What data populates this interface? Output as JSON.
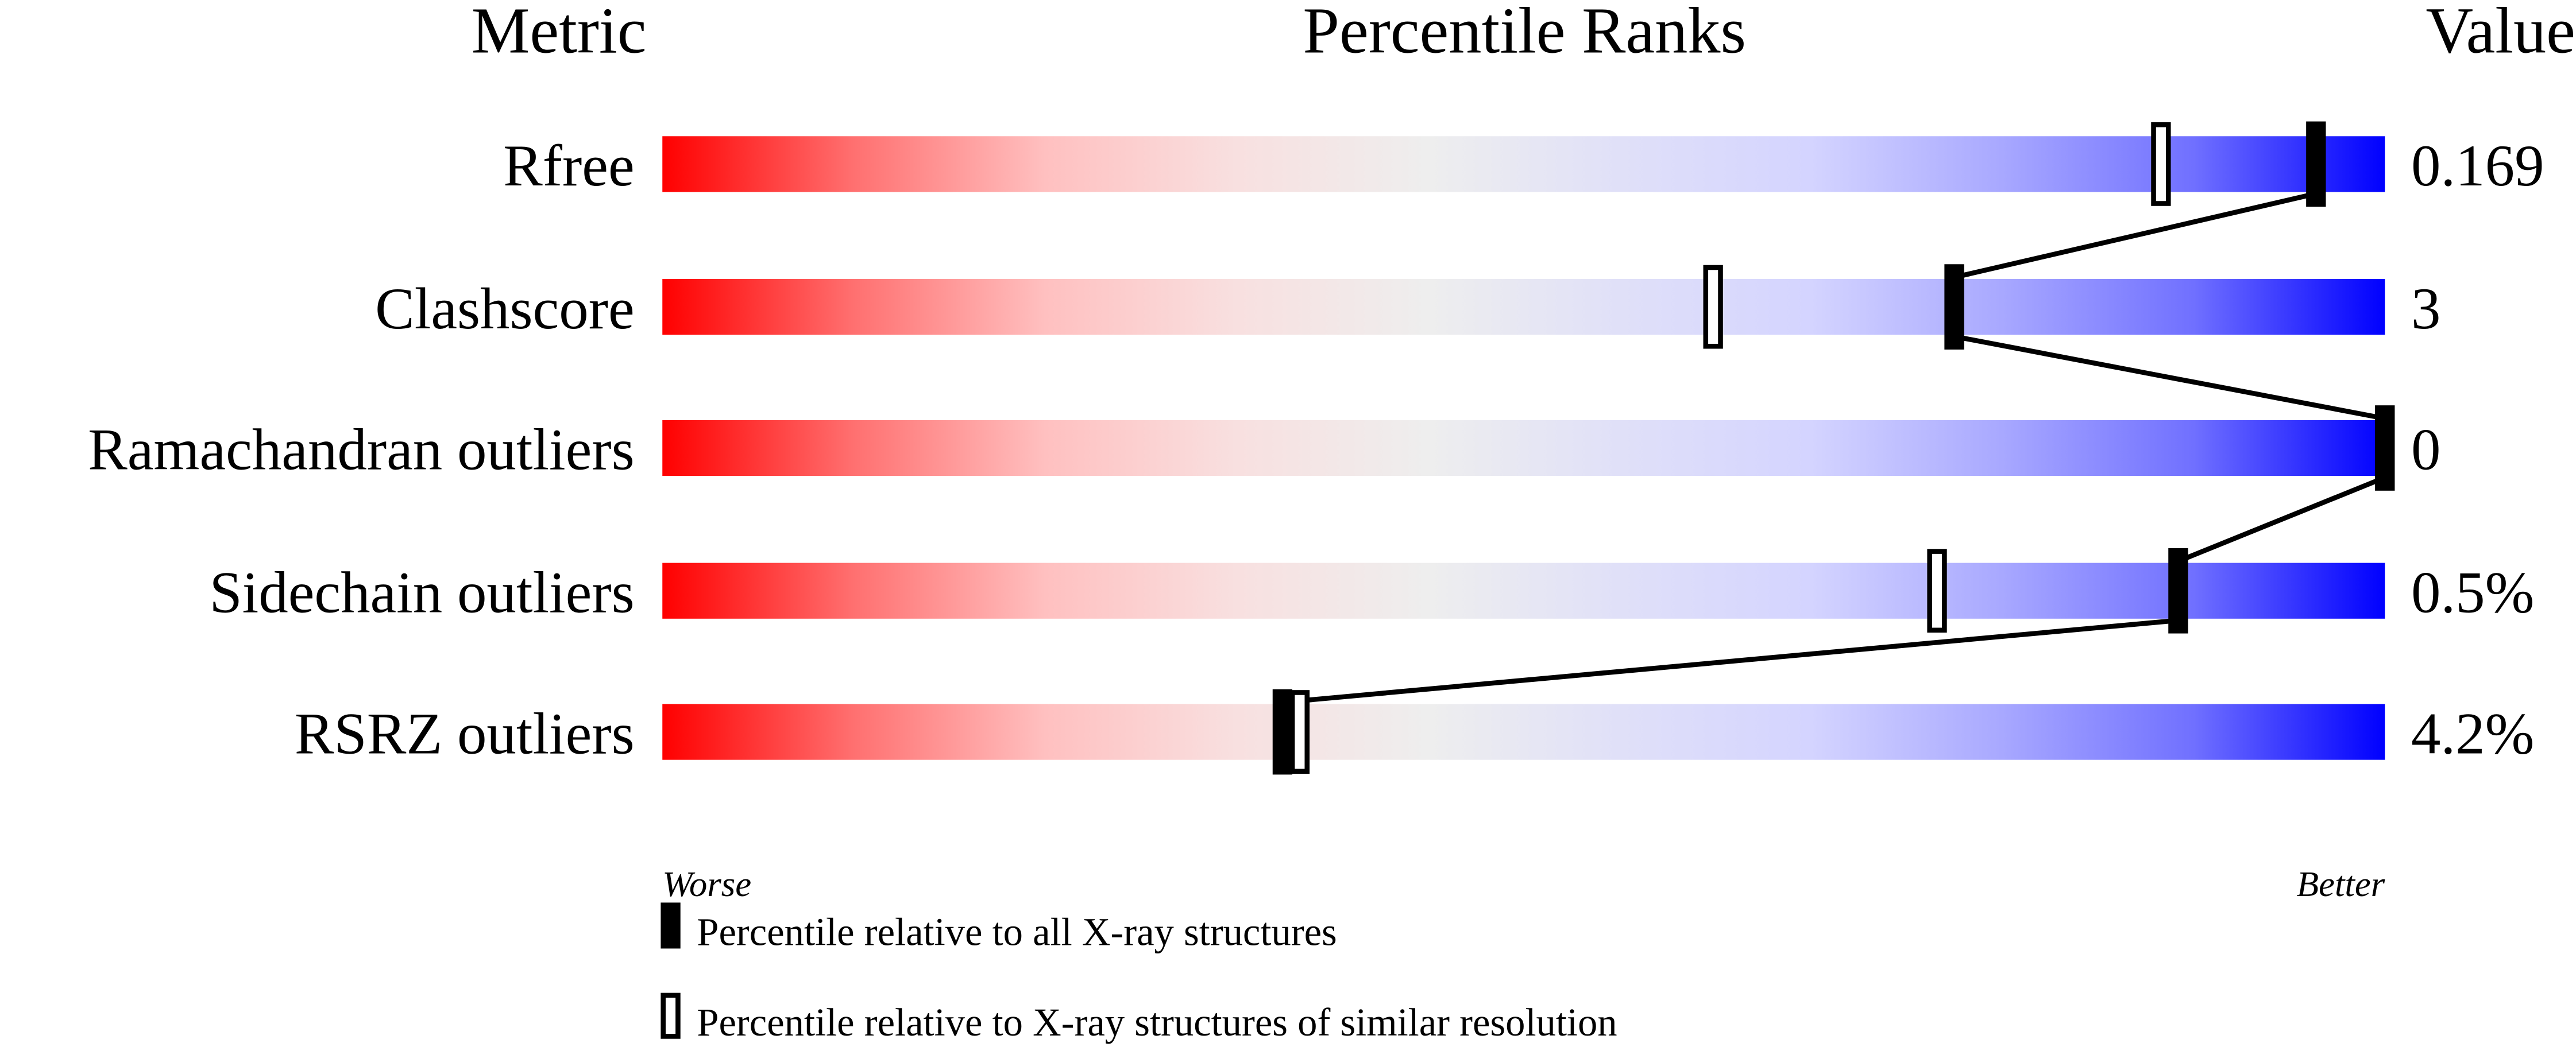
{
  "chart_data": {
    "type": "bar",
    "title": "",
    "headers": {
      "metric": "Metric",
      "ranks": "Percentile Ranks",
      "value": "Value"
    },
    "xlim": [
      0,
      100
    ],
    "axis_labels": {
      "left": "Worse",
      "right": "Better"
    },
    "metrics": [
      {
        "name": "Rfree",
        "value": "0.169",
        "percentile_all": 96,
        "percentile_similar": 87
      },
      {
        "name": "Clashscore",
        "value": "3",
        "percentile_all": 75,
        "percentile_similar": 61
      },
      {
        "name": "Ramachandran outliers",
        "value": "0",
        "percentile_all": 100,
        "percentile_similar": 100
      },
      {
        "name": "Sidechain outliers",
        "value": "0.5%",
        "percentile_all": 88,
        "percentile_similar": 74
      },
      {
        "name": "RSRZ outliers",
        "value": "4.2%",
        "percentile_all": 36,
        "percentile_similar": 37
      }
    ],
    "legend": [
      {
        "marker": "filled",
        "label": "Percentile relative to all X-ray structures"
      },
      {
        "marker": "outline",
        "label": "Percentile relative to X-ray structures of similar resolution"
      }
    ],
    "gradient_colors": [
      "#ff0000",
      "#ff7070",
      "#ffc0c0",
      "#f8e0e0",
      "#eeeeee",
      "#e0e0f8",
      "#d4d4ff",
      "#a8a8ff",
      "#7070ff",
      "#0000ff"
    ]
  }
}
